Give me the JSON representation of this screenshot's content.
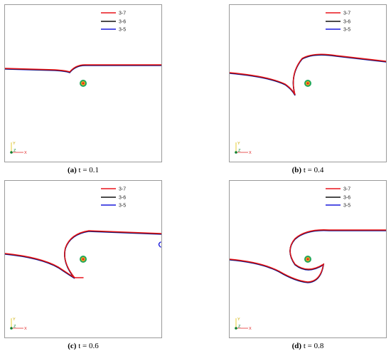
{
  "chart_data": [
    {
      "type": "line",
      "panel_label": "(a)",
      "caption": "t = 0.1",
      "legend": [
        "3-7",
        "3-6",
        "3-5"
      ],
      "series_colors": [
        "#e8141b",
        "#111111",
        "#1a1adb"
      ],
      "axis_triad": {
        "x": "X",
        "y": "Y",
        "z": "Z"
      }
    },
    {
      "type": "line",
      "panel_label": "(b)",
      "caption": "t = 0.4",
      "legend": [
        "3-7",
        "3-6",
        "3-5"
      ],
      "series_colors": [
        "#e8141b",
        "#111111",
        "#1a1adb"
      ],
      "axis_triad": {
        "x": "X",
        "y": "Y",
        "z": "Z"
      }
    },
    {
      "type": "line",
      "panel_label": "(c)",
      "caption": "t = 0.6",
      "legend": [
        "3-7",
        "3-6",
        "3-5"
      ],
      "series_colors": [
        "#e8141b",
        "#111111",
        "#1a1adb"
      ],
      "axis_triad": {
        "x": "X",
        "y": "Y",
        "z": "Z"
      }
    },
    {
      "type": "line",
      "panel_label": "(d)",
      "caption": "t = 0.8",
      "legend": [
        "3-7",
        "3-6",
        "3-5"
      ],
      "series_colors": [
        "#e8141b",
        "#111111",
        "#1a1adb"
      ],
      "axis_triad": {
        "x": "X",
        "y": "Y",
        "z": "Z"
      }
    }
  ]
}
